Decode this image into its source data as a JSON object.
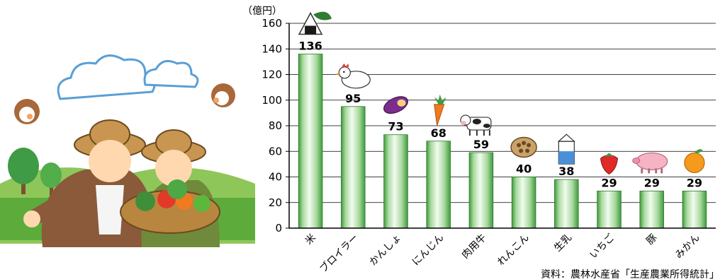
{
  "chart_data": {
    "type": "bar",
    "unit_label": "（億円）",
    "categories": [
      "米",
      "ブロイラー",
      "かんしょ",
      "にんじん",
      "肉用牛",
      "れんこん",
      "生乳",
      "いちご",
      "豚",
      "みかん"
    ],
    "values": [
      136,
      95,
      73,
      68,
      59,
      40,
      38,
      29,
      29,
      29
    ],
    "ylim": [
      0,
      160
    ],
    "yticks": [
      0,
      20,
      40,
      60,
      80,
      100,
      120,
      140,
      160
    ],
    "grid": true,
    "source": "資料：農林水産省「生産農業所得統計」",
    "colors": {
      "bar_light": "#f2fbef",
      "bar_dark": "#3f9a3c",
      "bar_edge": "#2f7a2f"
    },
    "icons": [
      "rice-ball-icon",
      "chicken-icon",
      "sweet-potato-icon",
      "carrot-icon",
      "cow-icon",
      "lotus-root-icon",
      "milk-carton-icon",
      "strawberry-icon",
      "pig-icon",
      "orange-icon"
    ]
  },
  "illustration": {
    "subject": "farmers-with-vegetable-basket"
  }
}
